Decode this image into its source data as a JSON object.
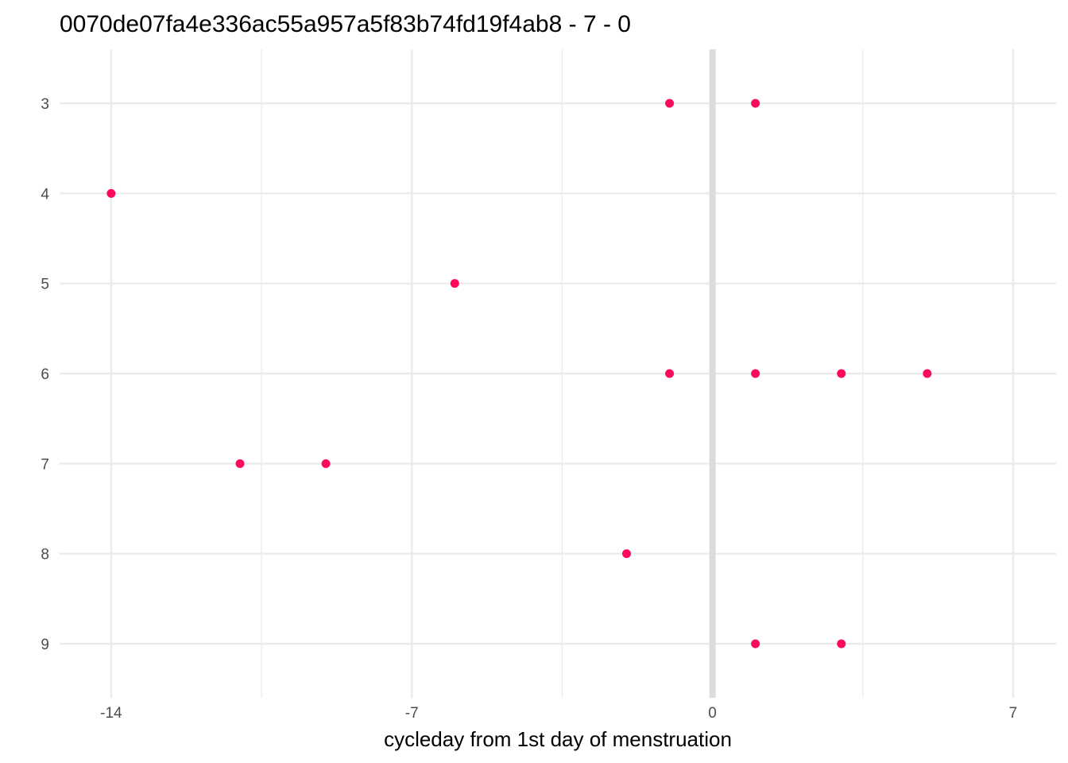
{
  "chart_data": {
    "type": "scatter",
    "title": "0070de07fa4e336ac55a957a5f83b74fd19f4ab8 - 7 - 0",
    "xlabel": "cycleday from 1st day of menstruation",
    "ylabel": "",
    "x_ticks": [
      -14,
      -7,
      0,
      7
    ],
    "x_tick_labels": [
      "-14",
      "-7",
      "0",
      "7"
    ],
    "y_ticks": [
      3,
      4,
      5,
      6,
      7,
      8,
      9
    ],
    "y_tick_labels": [
      "3",
      "4",
      "5",
      "6",
      "7",
      "8",
      "9"
    ],
    "xlim": [
      -15.2,
      8.0
    ],
    "ylim": [
      9.6,
      2.4
    ],
    "y_reversed": true,
    "grid": true,
    "reference_line_x": 0,
    "point_color": "#ff0a5a",
    "points": [
      {
        "x": -1,
        "y": 3
      },
      {
        "x": 1,
        "y": 3
      },
      {
        "x": -14,
        "y": 4
      },
      {
        "x": -6,
        "y": 5
      },
      {
        "x": -1,
        "y": 6
      },
      {
        "x": 1,
        "y": 6
      },
      {
        "x": 3,
        "y": 6
      },
      {
        "x": 5,
        "y": 6
      },
      {
        "x": -11,
        "y": 7
      },
      {
        "x": -9,
        "y": 7
      },
      {
        "x": -2,
        "y": 8
      },
      {
        "x": 1,
        "y": 9
      },
      {
        "x": 3,
        "y": 9
      }
    ]
  }
}
